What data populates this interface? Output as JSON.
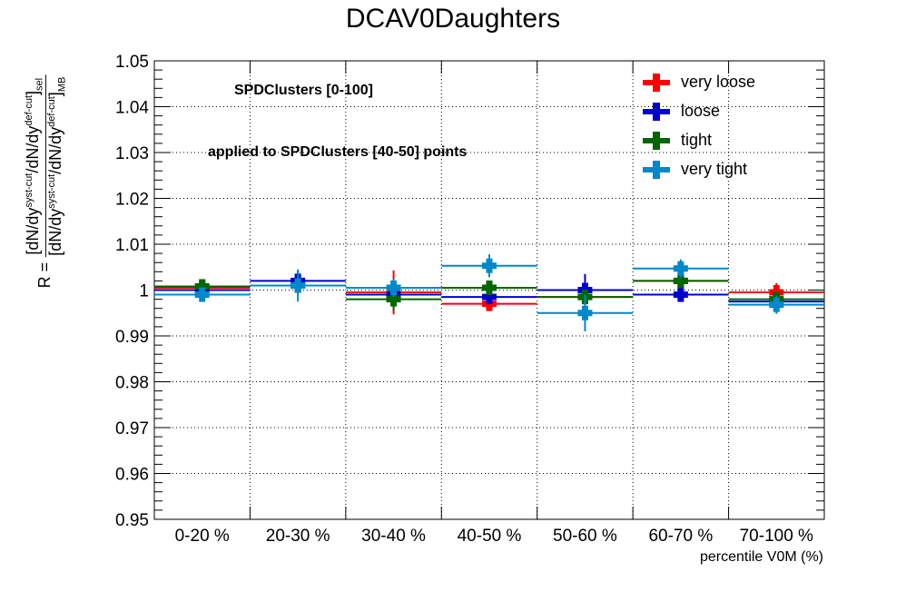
{
  "chart_data": {
    "type": "scatter",
    "title": "DCAV0Daughters",
    "xlabel": "percentile V0M (%)",
    "ylabel": "R = [dN/dy^syst-cut/dN/dy^def-cut]_sel / [dN/dy^syst-cut/dN/dy^def-cut]_MB",
    "ylim": [
      0.95,
      1.05
    ],
    "yticks": [
      "0.95",
      "0.96",
      "0.97",
      "0.98",
      "0.99",
      "1",
      "1.01",
      "1.02",
      "1.03",
      "1.04",
      "1.05"
    ],
    "categories": [
      "0-20 %",
      "20-30 %",
      "30-40 %",
      "40-50 %",
      "50-60 %",
      "60-70 %",
      "70-100 %"
    ],
    "grid": true,
    "legend_position": "top-right",
    "annotations": [
      "SPDClusters [0-100]",
      "applied to SPDClusters [40-50] points"
    ],
    "series": [
      {
        "name": "very loose",
        "color": "#ff0000",
        "values": [
          1.0005,
          1.001,
          0.9995,
          0.997,
          0.9985,
          1.002,
          0.9995
        ],
        "errors": [
          0.0008,
          0.0008,
          0.0048,
          0.0012,
          0.001,
          0.0008,
          0.002
        ]
      },
      {
        "name": "loose",
        "color": "#0000cc",
        "values": [
          1.0,
          1.002,
          0.999,
          0.9985,
          1.0,
          0.999,
          0.9975
        ],
        "errors": [
          0.001,
          0.0022,
          0.0012,
          0.001,
          0.0035,
          0.0012,
          0.0015
        ]
      },
      {
        "name": "tight",
        "color": "#006600",
        "values": [
          1.0008,
          1.001,
          0.998,
          1.0005,
          0.9985,
          1.002,
          0.998
        ],
        "errors": [
          0.0015,
          0.001,
          0.0025,
          0.0015,
          0.0012,
          0.001,
          0.0015
        ]
      },
      {
        "name": "very tight",
        "color": "#0088cc",
        "values": [
          0.999,
          1.001,
          1.0005,
          1.0053,
          0.995,
          1.0047,
          0.9968
        ],
        "errors": [
          0.0015,
          0.0035,
          0.002,
          0.0025,
          0.004,
          0.002,
          0.002
        ]
      }
    ]
  }
}
